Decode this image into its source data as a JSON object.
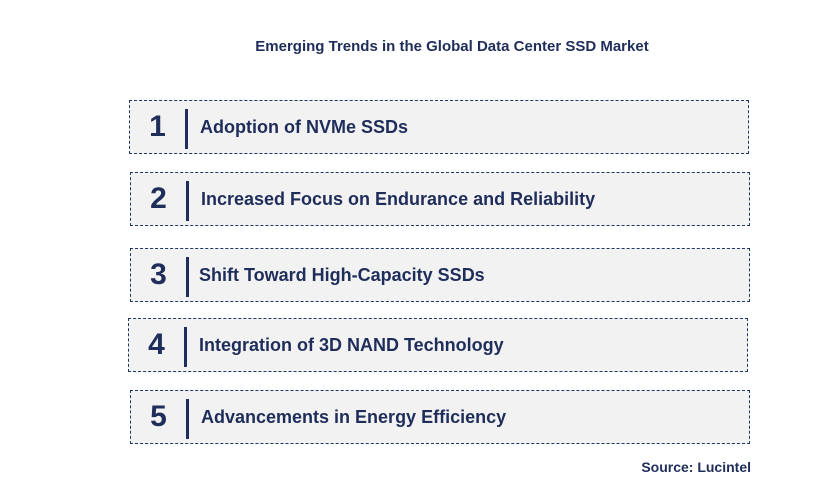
{
  "title": "Emerging Trends in the Global Data Center SSD Market",
  "trends": [
    {
      "number": "1",
      "label": "Adoption of NVMe SSDs"
    },
    {
      "number": "2",
      "label": "Increased Focus on Endurance and Reliability"
    },
    {
      "number": "3",
      "label": "Shift Toward High-Capacity SSDs"
    },
    {
      "number": "4",
      "label": "Integration of 3D NAND  Technology"
    },
    {
      "number": "5",
      "label": "Advancements in Energy Efficiency"
    }
  ],
  "source": "Source: Lucintel",
  "colors": {
    "text": "#1f2d5a",
    "box_fill": "#f2f2f2",
    "box_border": "#1f3864"
  }
}
